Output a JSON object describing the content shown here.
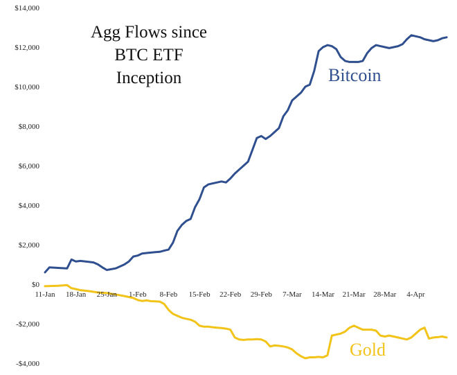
{
  "chart_data": {
    "type": "line",
    "title_lines": [
      "Agg Flows since",
      "BTC ETF",
      "Inception"
    ],
    "xlabel": "",
    "ylabel": "",
    "x_tick_labels": [
      "11-Jan",
      "18-Jan",
      "25-Jan",
      "1-Feb",
      "8-Feb",
      "15-Feb",
      "22-Feb",
      "29-Feb",
      "7-Mar",
      "14-Mar",
      "21-Mar",
      "28-Mar",
      "4-Apr"
    ],
    "x_tick_index": [
      0,
      7,
      14,
      21,
      28,
      35,
      42,
      49,
      56,
      63,
      70,
      77,
      84
    ],
    "y_tick_labels": [
      "$14,000",
      "$12,000",
      "$10,000",
      "$8,000",
      "$6,000",
      "$4,000",
      "$2,000",
      "$0",
      "-$2,000",
      "-$4,000"
    ],
    "y_tick_values": [
      14000,
      12000,
      10000,
      8000,
      6000,
      4000,
      2000,
      0,
      -2000,
      -4000
    ],
    "ylim": [
      -4000,
      14000
    ],
    "x_range": [
      0,
      91
    ],
    "grid": false,
    "series": [
      {
        "name": "Bitcoin",
        "color": "#2f4f8f",
        "x": [
          0,
          1,
          5,
          6,
          7,
          8,
          11,
          12,
          13,
          14,
          16,
          17,
          18,
          19,
          20,
          21,
          22,
          23,
          24,
          25,
          26,
          27,
          28,
          29,
          30,
          31,
          32,
          33,
          34,
          35,
          36,
          37,
          38,
          39,
          40,
          41,
          42,
          43,
          44,
          45,
          46,
          47,
          48,
          49,
          50,
          51,
          52,
          53,
          54,
          55,
          56,
          57,
          58,
          59,
          60,
          61,
          62,
          63,
          64,
          65,
          66,
          67,
          68,
          69,
          70,
          71,
          72,
          73,
          74,
          75,
          76,
          77,
          78,
          79,
          80,
          81,
          82,
          83,
          84,
          85,
          86,
          87,
          88,
          89,
          90,
          91
        ],
        "values": [
          600,
          850,
          800,
          1250,
          1150,
          1180,
          1100,
          1000,
          850,
          720,
          800,
          900,
          1000,
          1150,
          1400,
          1450,
          1550,
          1580,
          1600,
          1620,
          1640,
          1700,
          1750,
          2100,
          2700,
          3000,
          3200,
          3300,
          3900,
          4300,
          4900,
          5050,
          5100,
          5150,
          5200,
          5150,
          5350,
          5600,
          5800,
          6000,
          6200,
          6800,
          7400,
          7500,
          7350,
          7500,
          7700,
          7900,
          8500,
          8800,
          9300,
          9500,
          9700,
          10000,
          10100,
          10800,
          11800,
          12000,
          12100,
          12050,
          11900,
          11500,
          11300,
          11250,
          11250,
          11250,
          11300,
          11700,
          11950,
          12100,
          12050,
          12000,
          11950,
          12000,
          12050,
          12150,
          12400,
          12600,
          12550,
          12500,
          12400,
          12350,
          12300,
          12350,
          12450,
          12500
        ]
      },
      {
        "name": "Gold",
        "color": "#f2c318",
        "x": [
          0,
          3,
          5,
          6,
          7,
          8,
          10,
          12,
          14,
          16,
          18,
          20,
          21,
          22,
          23,
          24,
          25,
          26,
          27,
          28,
          29,
          30,
          31,
          32,
          33,
          34,
          35,
          36,
          37,
          38,
          39,
          40,
          41,
          42,
          43,
          44,
          45,
          46,
          47,
          48,
          49,
          50,
          51,
          52,
          53,
          54,
          55,
          56,
          57,
          58,
          59,
          60,
          61,
          62,
          63,
          64,
          65,
          66,
          67,
          68,
          69,
          70,
          71,
          72,
          73,
          74,
          75,
          76,
          77,
          78,
          79,
          80,
          81,
          82,
          83,
          84,
          85,
          86,
          87,
          88,
          89,
          90,
          91
        ],
        "values": [
          -100,
          -80,
          -50,
          -200,
          -250,
          -300,
          -350,
          -420,
          -450,
          -520,
          -600,
          -700,
          -800,
          -850,
          -820,
          -860,
          -870,
          -880,
          -1000,
          -1300,
          -1500,
          -1600,
          -1700,
          -1750,
          -1800,
          -1900,
          -2100,
          -2150,
          -2150,
          -2180,
          -2200,
          -2220,
          -2250,
          -2300,
          -2700,
          -2800,
          -2820,
          -2800,
          -2800,
          -2780,
          -2800,
          -2900,
          -3150,
          -3100,
          -3120,
          -3150,
          -3200,
          -3300,
          -3500,
          -3650,
          -3750,
          -3700,
          -3700,
          -3680,
          -3700,
          -3600,
          -2600,
          -2550,
          -2500,
          -2400,
          -2200,
          -2100,
          -2200,
          -2300,
          -2300,
          -2300,
          -2350,
          -2600,
          -2650,
          -2600,
          -2650,
          -2700,
          -2750,
          -2800,
          -2700,
          -2500,
          -2300,
          -2200,
          -2750,
          -2700,
          -2680,
          -2650,
          -2700
        ]
      }
    ]
  }
}
